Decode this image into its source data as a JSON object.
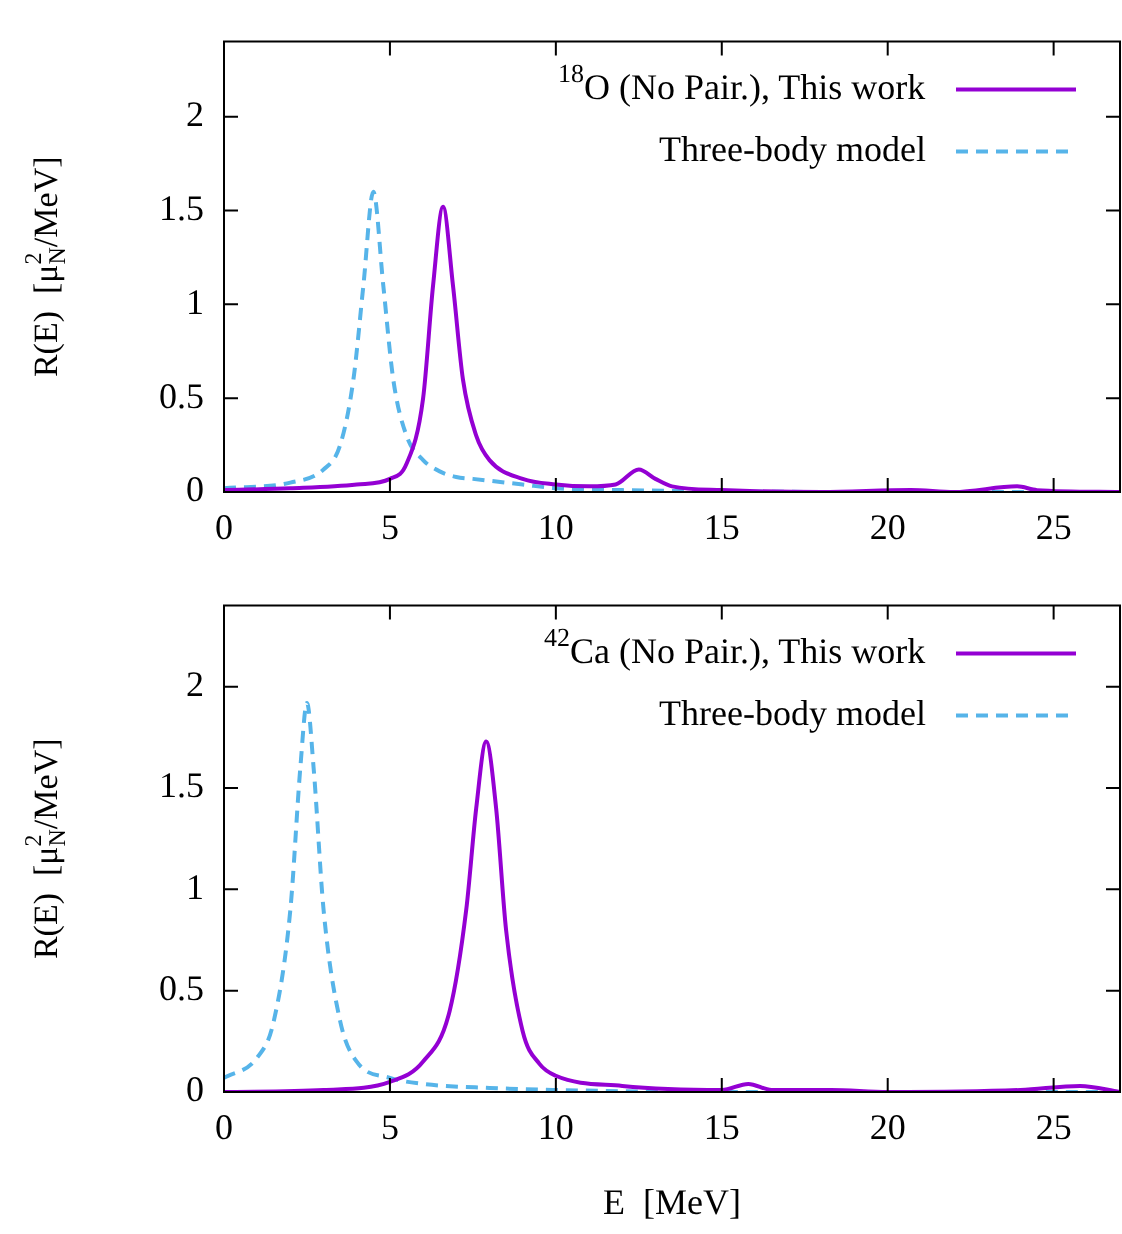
{
  "chart_data": [
    {
      "type": "line",
      "ylabel": "R(E)  [μ$^{2}$$_{N}$/MeV]",
      "xlim": [
        0,
        27
      ],
      "ylim": [
        0,
        2.4
      ],
      "xticks": [
        0,
        5,
        10,
        15,
        20,
        25
      ],
      "yticks": [
        0,
        0.5,
        1,
        1.5,
        2
      ],
      "legend": "top right",
      "series": [
        {
          "name": "$^{18}$O (No Pair.), This work",
          "color": "#9400d3",
          "line_style": "solid",
          "x": [
            0,
            2,
            4,
            5,
            5.5,
            6,
            6.3,
            6.6,
            6.9,
            7.2,
            7.6,
            8,
            9,
            10,
            11,
            11.8,
            12.5,
            13,
            13.5,
            15,
            18,
            20.7,
            22,
            23.9,
            24.5,
            27
          ],
          "values": [
            0.01,
            0.02,
            0.04,
            0.07,
            0.15,
            0.5,
            1.1,
            1.52,
            1.1,
            0.6,
            0.3,
            0.17,
            0.07,
            0.04,
            0.03,
            0.04,
            0.12,
            0.07,
            0.03,
            0.01,
            0,
            0.01,
            0,
            0.03,
            0.01,
            0
          ]
        },
        {
          "name": "Three-body model",
          "color": "#56b4e9",
          "line_style": "dashed",
          "x": [
            0,
            2,
            3,
            3.5,
            3.9,
            4.2,
            4.5,
            4.8,
            5.1,
            5.5,
            6,
            6.5,
            7,
            7.5,
            8,
            9,
            10,
            12,
            20,
            27
          ],
          "values": [
            0.02,
            0.05,
            0.12,
            0.25,
            0.6,
            1.1,
            1.6,
            1.1,
            0.6,
            0.3,
            0.17,
            0.11,
            0.08,
            0.07,
            0.06,
            0.04,
            0.02,
            0.01,
            0,
            0
          ]
        }
      ]
    },
    {
      "type": "line",
      "xlabel": "E  [MeV]",
      "ylabel": "R(E)  [μ$^{2}$$_{N}$/MeV]",
      "xlim": [
        0,
        27
      ],
      "ylim": [
        0,
        2.4
      ],
      "xticks": [
        0,
        5,
        10,
        15,
        20,
        25
      ],
      "yticks": [
        0,
        0.5,
        1,
        1.5,
        2
      ],
      "legend": "top right",
      "series": [
        {
          "name": "$^{42}$Ca (No Pair.), This work",
          "color": "#9400d3",
          "line_style": "solid",
          "x": [
            0,
            3,
            5,
            6,
            6.8,
            7.3,
            7.6,
            7.9,
            8.2,
            8.5,
            9,
            9.5,
            10,
            12,
            15,
            15.8,
            16.5,
            18.3,
            20,
            24,
            25.8,
            27
          ],
          "values": [
            0,
            0.01,
            0.05,
            0.15,
            0.4,
            0.9,
            1.4,
            1.73,
            1.4,
            0.8,
            0.3,
            0.14,
            0.08,
            0.03,
            0.01,
            0.04,
            0.01,
            0.01,
            0,
            0.01,
            0.03,
            0
          ]
        },
        {
          "name": "Three-body model",
          "color": "#56b4e9",
          "line_style": "dashed",
          "x": [
            0,
            1,
            1.5,
            2,
            2.3,
            2.5,
            2.7,
            3,
            3.5,
            4,
            5,
            6,
            8,
            10,
            15,
            27
          ],
          "values": [
            0.07,
            0.17,
            0.35,
            0.9,
            1.6,
            1.92,
            1.6,
            0.9,
            0.35,
            0.15,
            0.07,
            0.04,
            0.02,
            0.01,
            0,
            0
          ]
        }
      ]
    }
  ]
}
